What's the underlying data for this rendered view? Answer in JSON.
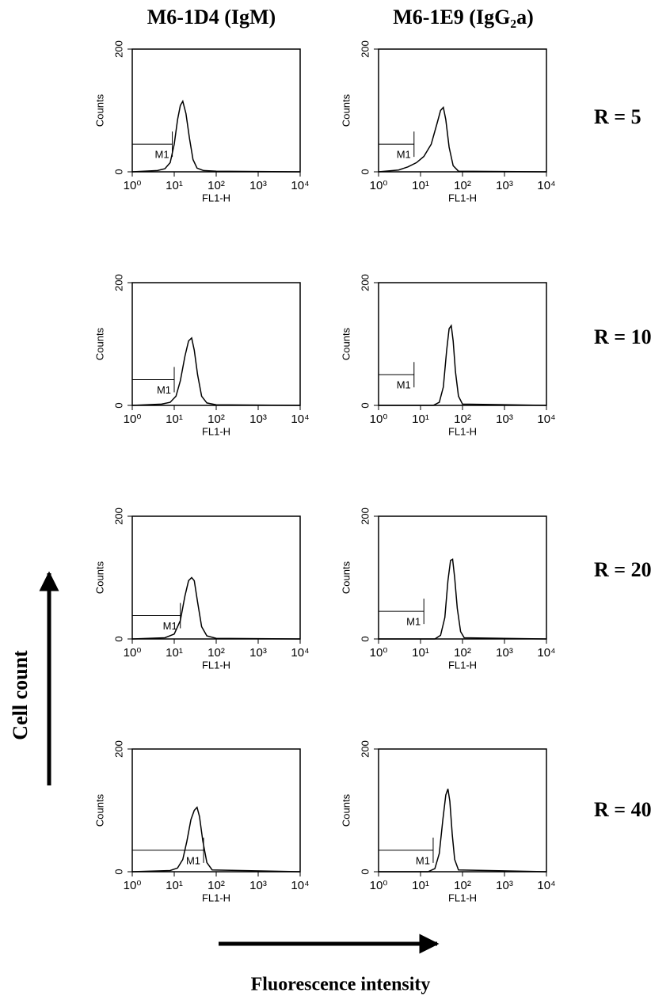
{
  "columns": [
    "M6-1D4 (IgM)",
    "M6-1E9 (IgG₂a)"
  ],
  "rows": [
    "R = 5",
    "R = 10",
    "R = 20",
    "R = 40"
  ],
  "y_axis_label": "Cell count",
  "x_axis_label": "Fluorescence intensity",
  "chart_data": [
    {
      "type": "line",
      "ylabel": "Counts",
      "xlabel": "FL1-H",
      "xscale": "log",
      "xlim": [
        1,
        10000
      ],
      "xticks": [
        {
          "value": 1,
          "label": "10⁰"
        },
        {
          "value": 10,
          "label": "10¹"
        },
        {
          "value": 100,
          "label": "10²"
        },
        {
          "value": 1000,
          "label": "10³"
        },
        {
          "value": 10000,
          "label": "10⁴"
        }
      ],
      "ylim": [
        0,
        200
      ],
      "yticks": [
        0,
        200
      ],
      "color": "#000000",
      "x": [
        1,
        4,
        6,
        8,
        10,
        12,
        14,
        16,
        19,
        23,
        28,
        35,
        50,
        100,
        10000
      ],
      "values": [
        0,
        2,
        5,
        15,
        45,
        85,
        108,
        115,
        95,
        55,
        20,
        6,
        2,
        1,
        0
      ],
      "gate": {
        "label": "M1",
        "x": [
          1,
          9
        ],
        "y": 45
      }
    },
    {
      "type": "line",
      "ylabel": "Counts",
      "xlabel": "FL1-H",
      "xscale": "log",
      "xlim": [
        1,
        10000
      ],
      "xticks": [
        {
          "value": 1,
          "label": "10⁰"
        },
        {
          "value": 10,
          "label": "10¹"
        },
        {
          "value": 100,
          "label": "10²"
        },
        {
          "value": 1000,
          "label": "10³"
        },
        {
          "value": 10000,
          "label": "10⁴"
        }
      ],
      "ylim": [
        0,
        200
      ],
      "yticks": [
        0,
        200
      ],
      "color": "#000000",
      "x": [
        1,
        3,
        5,
        8,
        12,
        18,
        25,
        30,
        35,
        40,
        48,
        60,
        80,
        10000
      ],
      "values": [
        0,
        3,
        8,
        15,
        25,
        45,
        80,
        100,
        105,
        85,
        40,
        10,
        1,
        0
      ],
      "gate": {
        "label": "M1",
        "x": [
          1,
          7
        ],
        "y": 45
      }
    },
    {
      "type": "line",
      "ylabel": "Counts",
      "xlabel": "FL1-H",
      "xscale": "log",
      "xlim": [
        1,
        10000
      ],
      "xticks": [
        {
          "value": 1,
          "label": "10⁰"
        },
        {
          "value": 10,
          "label": "10¹"
        },
        {
          "value": 100,
          "label": "10²"
        },
        {
          "value": 1000,
          "label": "10³"
        },
        {
          "value": 10000,
          "label": "10⁴"
        }
      ],
      "ylim": [
        0,
        200
      ],
      "yticks": [
        0,
        200
      ],
      "color": "#000000",
      "x": [
        1,
        5,
        8,
        11,
        14,
        18,
        22,
        26,
        30,
        36,
        45,
        60,
        100,
        10000
      ],
      "values": [
        0,
        2,
        5,
        15,
        40,
        80,
        105,
        110,
        90,
        50,
        15,
        4,
        1,
        0
      ],
      "gate": {
        "label": "M1",
        "x": [
          1,
          10
        ],
        "y": 42
      }
    },
    {
      "type": "line",
      "ylabel": "Counts",
      "xlabel": "FL1-H",
      "xscale": "log",
      "xlim": [
        1,
        10000
      ],
      "xticks": [
        {
          "value": 1,
          "label": "10⁰"
        },
        {
          "value": 10,
          "label": "10¹"
        },
        {
          "value": 100,
          "label": "10²"
        },
        {
          "value": 1000,
          "label": "10³"
        },
        {
          "value": 10000,
          "label": "10⁴"
        }
      ],
      "ylim": [
        0,
        200
      ],
      "yticks": [
        0,
        200
      ],
      "color": "#000000",
      "x": [
        1,
        20,
        28,
        35,
        42,
        48,
        54,
        60,
        68,
        80,
        100,
        10000
      ],
      "values": [
        0,
        0,
        5,
        30,
        90,
        125,
        130,
        105,
        55,
        15,
        2,
        0
      ],
      "gate": {
        "label": "M1",
        "x": [
          1,
          7
        ],
        "y": 50
      }
    },
    {
      "type": "line",
      "ylabel": "Counts",
      "xlabel": "FL1-H",
      "xscale": "log",
      "xlim": [
        1,
        10000
      ],
      "xticks": [
        {
          "value": 1,
          "label": "10⁰"
        },
        {
          "value": 10,
          "label": "10¹"
        },
        {
          "value": 100,
          "label": "10²"
        },
        {
          "value": 1000,
          "label": "10³"
        },
        {
          "value": 10000,
          "label": "10⁴"
        }
      ],
      "ylim": [
        0,
        200
      ],
      "yticks": [
        0,
        200
      ],
      "color": "#000000",
      "x": [
        1,
        6,
        10,
        14,
        18,
        22,
        26,
        30,
        36,
        45,
        60,
        100,
        10000
      ],
      "values": [
        0,
        2,
        8,
        30,
        70,
        95,
        100,
        95,
        60,
        20,
        5,
        1,
        0
      ],
      "gate": {
        "label": "M1",
        "x": [
          1,
          14
        ],
        "y": 38
      }
    },
    {
      "type": "line",
      "ylabel": "Counts",
      "xlabel": "FL1-H",
      "xscale": "log",
      "xlim": [
        1,
        10000
      ],
      "xticks": [
        {
          "value": 1,
          "label": "10⁰"
        },
        {
          "value": 10,
          "label": "10¹"
        },
        {
          "value": 100,
          "label": "10²"
        },
        {
          "value": 1000,
          "label": "10³"
        },
        {
          "value": 10000,
          "label": "10⁴"
        }
      ],
      "ylim": [
        0,
        200
      ],
      "yticks": [
        0,
        200
      ],
      "color": "#000000",
      "x": [
        1,
        22,
        30,
        38,
        45,
        52,
        58,
        65,
        75,
        90,
        110,
        10000
      ],
      "values": [
        0,
        0,
        6,
        35,
        95,
        128,
        130,
        100,
        50,
        12,
        2,
        0
      ],
      "gate": {
        "label": "M1",
        "x": [
          1,
          12
        ],
        "y": 45
      }
    },
    {
      "type": "line",
      "ylabel": "Counts",
      "xlabel": "FL1-H",
      "xscale": "log",
      "xlim": [
        1,
        10000
      ],
      "xticks": [
        {
          "value": 1,
          "label": "10⁰"
        },
        {
          "value": 10,
          "label": "10¹"
        },
        {
          "value": 100,
          "label": "10²"
        },
        {
          "value": 1000,
          "label": "10³"
        },
        {
          "value": 10000,
          "label": "10⁴"
        }
      ],
      "ylim": [
        0,
        200
      ],
      "yticks": [
        0,
        200
      ],
      "color": "#000000",
      "x": [
        1,
        8,
        12,
        16,
        20,
        25,
        30,
        35,
        40,
        48,
        60,
        80,
        10000
      ],
      "values": [
        0,
        2,
        6,
        20,
        50,
        85,
        100,
        105,
        90,
        50,
        15,
        3,
        0
      ],
      "gate": {
        "label": "M1",
        "x": [
          1,
          50
        ],
        "y": 35
      }
    },
    {
      "type": "line",
      "ylabel": "Counts",
      "xlabel": "FL1-H",
      "xscale": "log",
      "xlim": [
        1,
        10000
      ],
      "xticks": [
        {
          "value": 1,
          "label": "10⁰"
        },
        {
          "value": 10,
          "label": "10¹"
        },
        {
          "value": 100,
          "label": "10²"
        },
        {
          "value": 1000,
          "label": "10³"
        },
        {
          "value": 10000,
          "label": "10⁴"
        }
      ],
      "ylim": [
        0,
        200
      ],
      "yticks": [
        0,
        200
      ],
      "color": "#000000",
      "x": [
        1,
        15,
        22,
        28,
        34,
        40,
        45,
        50,
        57,
        65,
        80,
        10000
      ],
      "values": [
        0,
        0,
        5,
        30,
        85,
        125,
        135,
        115,
        60,
        20,
        3,
        0
      ],
      "gate": {
        "label": "M1",
        "x": [
          1,
          20
        ],
        "y": 35
      }
    }
  ]
}
